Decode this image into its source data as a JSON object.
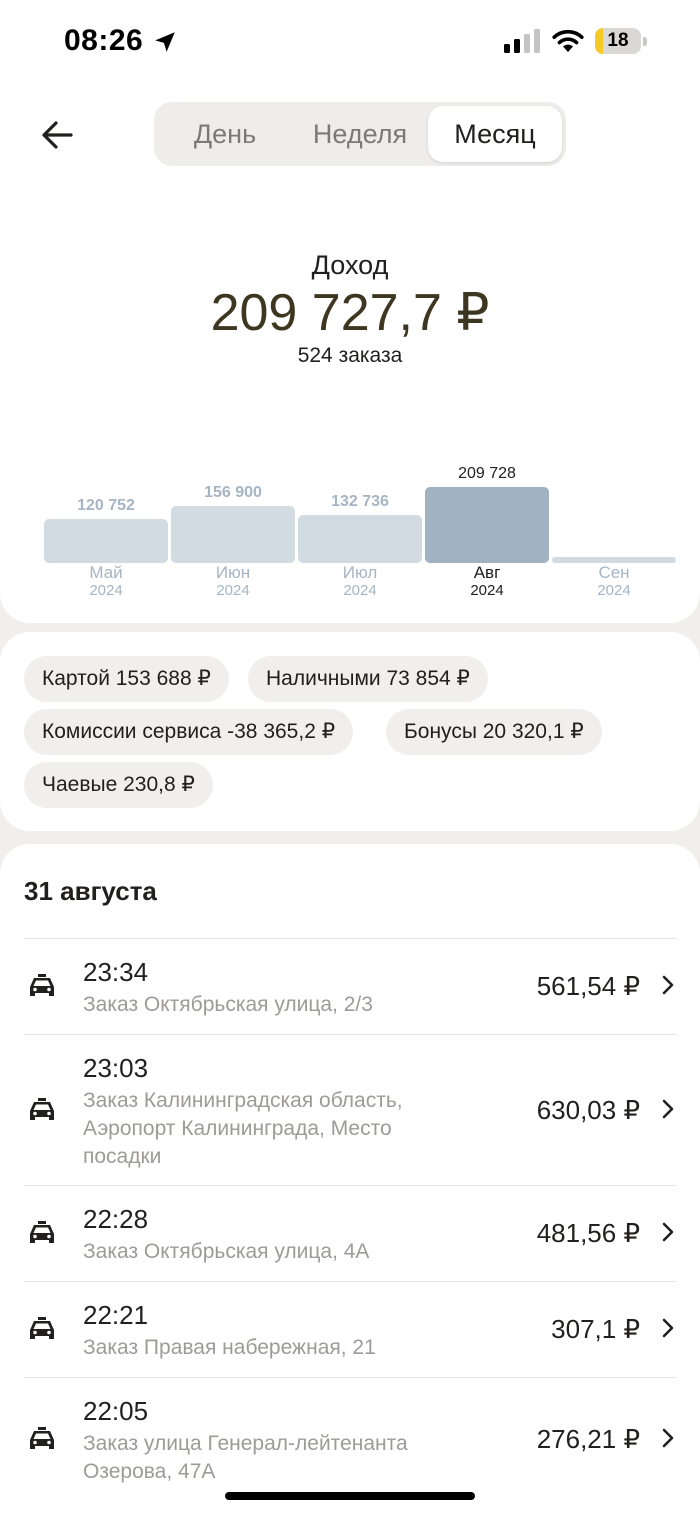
{
  "status_bar": {
    "time": "08:26",
    "battery": "18",
    "battery_level": 0.18,
    "icons": [
      "location-arrow-icon",
      "cellular-signal-icon",
      "wifi-icon",
      "battery-icon"
    ]
  },
  "header": {
    "back_icon": "arrow-left-icon",
    "tabs": [
      {
        "label": "День",
        "active": false
      },
      {
        "label": "Неделя",
        "active": false
      },
      {
        "label": "Месяц",
        "active": true
      }
    ]
  },
  "summary": {
    "title": "Доход",
    "amount": "209 727,7 ₽",
    "orders_count": "524 заказа"
  },
  "chart_data": {
    "type": "bar",
    "categories": [
      "Май 2024",
      "Июн 2024",
      "Июл 2024",
      "Авг 2024",
      "Сен 2024"
    ],
    "months": [
      "Май",
      "Июн",
      "Июл",
      "Авг",
      "Сен"
    ],
    "years": [
      "2024",
      "2024",
      "2024",
      "2024",
      "2024"
    ],
    "values": [
      120752,
      156900,
      132736,
      209728,
      0
    ],
    "value_labels": [
      "120 752",
      "156 900",
      "132 736",
      "209 728",
      ""
    ],
    "selected_index": 3,
    "title": "",
    "xlabel": "",
    "ylabel": "",
    "ylim": [
      0,
      209728
    ],
    "colors": {
      "bar": "#d3dbe2",
      "selected_bar": "#a1b2c0",
      "label": "#a6b5c4",
      "selected_label": "#21201f"
    }
  },
  "breakdown": {
    "chips": [
      "Картой 153 688 ₽",
      "Наличными 73 854 ₽",
      "Комиссии сервиса -38 365,2 ₽",
      "Бонусы 20 320,1 ₽",
      "Чаевые 230,8 ₽"
    ]
  },
  "orders": {
    "date": "31 августа",
    "icon": "taxi-car-icon",
    "chevron_icon": "chevron-right-icon",
    "items": [
      {
        "time": "23:34",
        "description": "Заказ Октябрьская улица, 2/3",
        "price": "561,54 ₽"
      },
      {
        "time": "23:03",
        "description": "Заказ Калининградская область, Аэропорт Калининграда, Место посадки",
        "price": "630,03 ₽"
      },
      {
        "time": "22:28",
        "description": "Заказ Октябрьская улица, 4А",
        "price": "481,56 ₽"
      },
      {
        "time": "22:21",
        "description": "Заказ Правая набережная, 21",
        "price": "307,1 ₽"
      },
      {
        "time": "22:05",
        "description": "Заказ улица Генерал-лейтенанта Озерова, 47А",
        "price": "276,21 ₽"
      }
    ]
  },
  "colors": {
    "background": "#f0efed",
    "card": "#ffffff",
    "amount": "#3d3621",
    "secondary_text": "#9c9b98",
    "battery_accent": "#f6c927"
  }
}
